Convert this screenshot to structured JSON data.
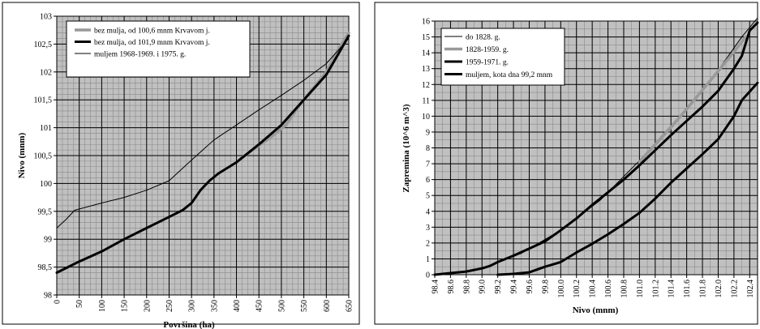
{
  "chart_data": [
    {
      "type": "line",
      "xlabel": "Površina (ha)",
      "ylabel": "Nivo (mnm)",
      "xlim": [
        0,
        650
      ],
      "ylim": [
        98,
        103
      ],
      "grid": true,
      "legend_position": "top-left",
      "x_ticks": [
        0,
        50,
        100,
        150,
        200,
        250,
        300,
        350,
        400,
        450,
        500,
        550,
        600,
        650
      ],
      "x_tick_labels": [
        "0",
        "50",
        "100",
        "150",
        "200",
        "250",
        "300",
        "350",
        "400",
        "450",
        "500",
        "550",
        "600",
        "650"
      ],
      "y_ticks": [
        98,
        98.5,
        99,
        99.5,
        100,
        100.5,
        101,
        101.5,
        102,
        102.5,
        103
      ],
      "y_tick_labels": [
        "98",
        "98,5",
        "99",
        "99,5",
        "100",
        "100,5",
        "101",
        "101,5",
        "102",
        "102,5",
        "103"
      ],
      "series": [
        {
          "name": "bez mulja, od 100,6 mnm Krvavom j.",
          "color": "#999999",
          "width": 3.5,
          "points": [
            [
              410,
              100.45
            ],
            [
              450,
              100.68
            ],
            [
              480,
              100.85
            ],
            [
              510,
              101.05
            ],
            [
              540,
              101.4
            ],
            [
              570,
              101.7
            ],
            [
              600,
              102.0
            ],
            [
              630,
              102.45
            ],
            [
              650,
              102.7
            ]
          ]
        },
        {
          "name": "bez mulja, od 101,9 mnm Krvavom j.",
          "color": "#000000",
          "width": 3,
          "points": [
            [
              0,
              98.4
            ],
            [
              25,
              98.5
            ],
            [
              50,
              98.6
            ],
            [
              100,
              98.78
            ],
            [
              150,
              99.0
            ],
            [
              200,
              99.2
            ],
            [
              250,
              99.4
            ],
            [
              280,
              99.52
            ],
            [
              300,
              99.65
            ],
            [
              320,
              99.88
            ],
            [
              340,
              100.05
            ],
            [
              360,
              100.18
            ],
            [
              380,
              100.28
            ],
            [
              400,
              100.38
            ],
            [
              450,
              100.7
            ],
            [
              500,
              101.05
            ],
            [
              550,
              101.5
            ],
            [
              600,
              101.95
            ],
            [
              625,
              102.3
            ],
            [
              650,
              102.65
            ]
          ]
        },
        {
          "name": "muljem 1968-1969. i 1975. g.",
          "color": "#000000",
          "width": 1,
          "points": [
            [
              0,
              99.2
            ],
            [
              20,
              99.35
            ],
            [
              40,
              99.52
            ],
            [
              100,
              99.65
            ],
            [
              150,
              99.75
            ],
            [
              200,
              99.88
            ],
            [
              250,
              100.05
            ],
            [
              300,
              100.42
            ],
            [
              350,
              100.78
            ],
            [
              400,
              101.05
            ],
            [
              450,
              101.32
            ],
            [
              500,
              101.58
            ],
            [
              550,
              101.85
            ],
            [
              600,
              102.15
            ],
            [
              650,
              102.6
            ]
          ]
        }
      ]
    },
    {
      "type": "line",
      "xlabel": "Nivo (mnm)",
      "ylabel": "Zapremina (10^6 m^3)",
      "xlim": [
        98.4,
        102.5
      ],
      "ylim": [
        0,
        16
      ],
      "grid": true,
      "legend_position": "top-left",
      "x_ticks": [
        98.4,
        98.6,
        98.8,
        99.0,
        99.2,
        99.4,
        99.6,
        99.8,
        100.0,
        100.2,
        100.4,
        100.6,
        100.8,
        101.0,
        101.2,
        101.4,
        101.6,
        101.8,
        102.0,
        102.2,
        102.4
      ],
      "x_tick_labels": [
        "98.4",
        "98.6",
        "98.8",
        "99.0",
        "99.2",
        "99.4",
        "99.6",
        "99.8",
        "100.0",
        "100.2",
        "100.4",
        "100.6",
        "100.8",
        "101.0",
        "101.2",
        "101.4",
        "101.6",
        "101.8",
        "102.0",
        "102.2",
        "102.4"
      ],
      "y_ticks": [
        0,
        1,
        2,
        3,
        4,
        5,
        6,
        7,
        8,
        9,
        10,
        11,
        12,
        13,
        14,
        15,
        16
      ],
      "y_tick_labels": [
        "0",
        "1",
        "2",
        "3",
        "4",
        "5",
        "6",
        "7",
        "8",
        "9",
        "10",
        "11",
        "12",
        "13",
        "14",
        "15",
        "16"
      ],
      "series": [
        {
          "name": "do 1828. g.",
          "color": "#000000",
          "width": 1,
          "points": [
            [
              99.0,
              0.4
            ],
            [
              99.5,
              1.35
            ],
            [
              100.0,
              2.8
            ],
            [
              100.5,
              4.7
            ],
            [
              101.0,
              7.2
            ],
            [
              101.5,
              9.95
            ],
            [
              102.0,
              12.9
            ],
            [
              102.3,
              15.0
            ],
            [
              102.5,
              16.2
            ]
          ]
        },
        {
          "name": "1828-1959. g.",
          "color": "#999999",
          "width": 3.5,
          "points": [
            [
              101.0,
              7.1
            ],
            [
              101.2,
              8.2
            ],
            [
              101.4,
              9.3
            ],
            [
              101.6,
              10.45
            ],
            [
              101.8,
              11.65
            ],
            [
              102.0,
              12.85
            ],
            [
              102.2,
              14.05
            ],
            [
              102.35,
              15.0
            ]
          ]
        },
        {
          "name": "1959-1971. g.",
          "color": "#000000",
          "width": 3,
          "points": [
            [
              98.4,
              0.0
            ],
            [
              98.6,
              0.1
            ],
            [
              98.8,
              0.2
            ],
            [
              98.9,
              0.3
            ],
            [
              99.0,
              0.4
            ],
            [
              99.1,
              0.55
            ],
            [
              99.2,
              0.8
            ],
            [
              99.4,
              1.2
            ],
            [
              99.6,
              1.65
            ],
            [
              99.8,
              2.1
            ],
            [
              100.0,
              2.8
            ],
            [
              100.2,
              3.55
            ],
            [
              100.4,
              4.4
            ],
            [
              100.6,
              5.2
            ],
            [
              100.8,
              6.0
            ],
            [
              101.0,
              6.9
            ],
            [
              101.2,
              7.85
            ],
            [
              101.4,
              8.8
            ],
            [
              101.6,
              9.7
            ],
            [
              101.8,
              10.6
            ],
            [
              102.0,
              11.6
            ],
            [
              102.2,
              13.0
            ],
            [
              102.3,
              13.8
            ],
            [
              102.4,
              15.4
            ],
            [
              102.5,
              15.9
            ]
          ]
        },
        {
          "name": "muljem, kota dna 99,2 mnm",
          "color": "#000000",
          "width": 3,
          "points": [
            [
              99.2,
              0.0
            ],
            [
              99.4,
              0.05
            ],
            [
              99.6,
              0.15
            ],
            [
              99.8,
              0.5
            ],
            [
              100.0,
              0.8
            ],
            [
              100.2,
              1.4
            ],
            [
              100.4,
              1.95
            ],
            [
              100.6,
              2.55
            ],
            [
              100.8,
              3.2
            ],
            [
              101.0,
              3.9
            ],
            [
              101.2,
              4.8
            ],
            [
              101.4,
              5.8
            ],
            [
              101.6,
              6.7
            ],
            [
              101.8,
              7.6
            ],
            [
              102.0,
              8.55
            ],
            [
              102.2,
              10.0
            ],
            [
              102.3,
              11.0
            ],
            [
              102.5,
              12.1
            ]
          ]
        }
      ]
    }
  ]
}
